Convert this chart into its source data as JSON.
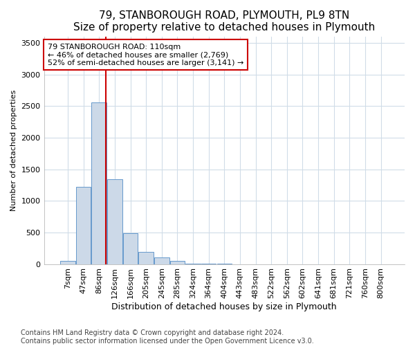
{
  "title1": "79, STANBOROUGH ROAD, PLYMOUTH, PL9 8TN",
  "title2": "Size of property relative to detached houses in Plymouth",
  "xlabel": "Distribution of detached houses by size in Plymouth",
  "ylabel": "Number of detached properties",
  "categories": [
    "7sqm",
    "47sqm",
    "86sqm",
    "126sqm",
    "166sqm",
    "205sqm",
    "245sqm",
    "285sqm",
    "324sqm",
    "364sqm",
    "404sqm",
    "443sqm",
    "483sqm",
    "522sqm",
    "562sqm",
    "602sqm",
    "641sqm",
    "681sqm",
    "721sqm",
    "760sqm",
    "800sqm"
  ],
  "values": [
    50,
    1220,
    2560,
    1340,
    490,
    195,
    110,
    45,
    10,
    5,
    2,
    0,
    0,
    0,
    0,
    0,
    0,
    0,
    0,
    0,
    0
  ],
  "bar_color": "#ccd9e8",
  "bar_edge_color": "#6699cc",
  "vline_x": 2.45,
  "annotation_line1": "79 STANBOROUGH ROAD: 110sqm",
  "annotation_line2": "← 46% of detached houses are smaller (2,769)",
  "annotation_line3": "52% of semi-detached houses are larger (3,141) →",
  "vline_color": "#cc0000",
  "ylim": [
    0,
    3600
  ],
  "yticks": [
    0,
    500,
    1000,
    1500,
    2000,
    2500,
    3000,
    3500
  ],
  "footer1": "Contains HM Land Registry data © Crown copyright and database right 2024.",
  "footer2": "Contains public sector information licensed under the Open Government Licence v3.0.",
  "bg_color": "#ffffff",
  "grid_color": "#d0dce8",
  "annotation_box_color": "#ffffff",
  "annotation_box_edge": "#cc0000",
  "title1_fontsize": 11,
  "title2_fontsize": 10,
  "xlabel_fontsize": 9,
  "ylabel_fontsize": 8,
  "tick_fontsize": 8,
  "footer_fontsize": 7,
  "annotation_fontsize": 8
}
